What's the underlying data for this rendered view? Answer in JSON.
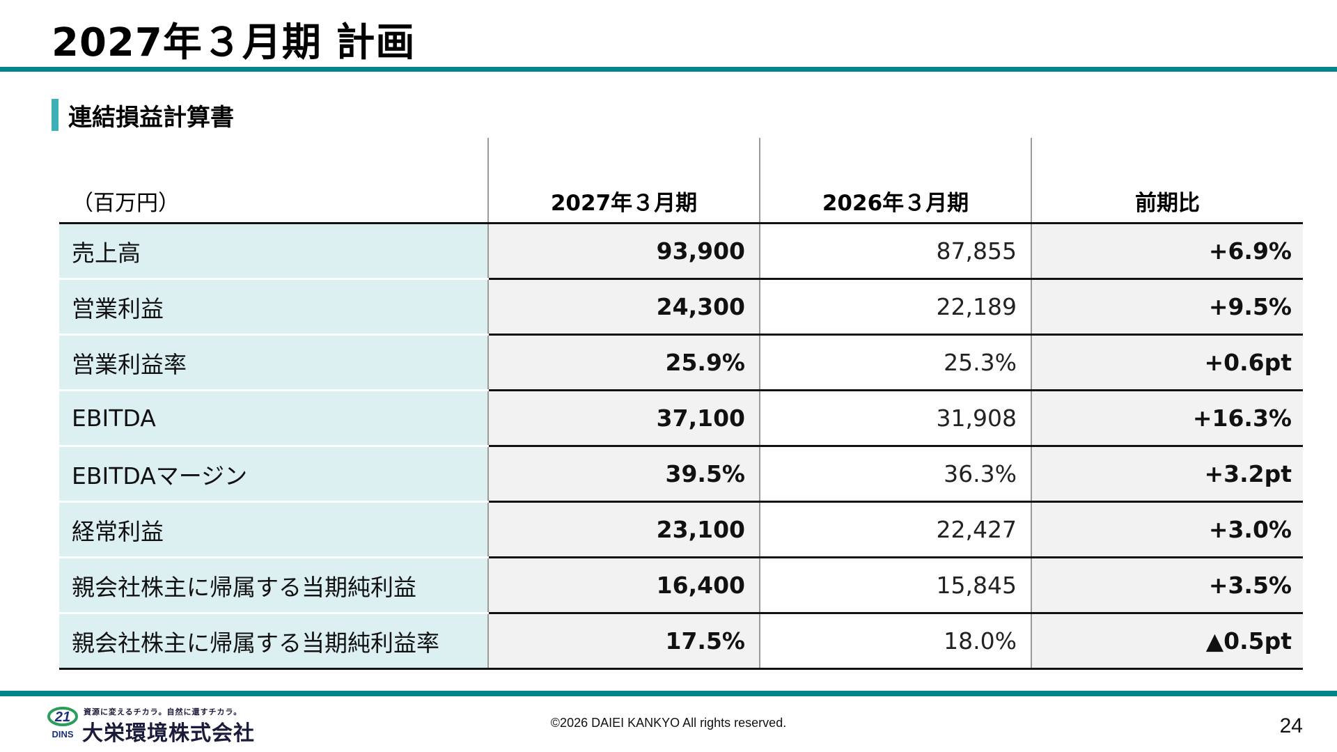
{
  "page": {
    "title": "2027年３月期 計画",
    "number": "24"
  },
  "section": {
    "title": "連結損益計算書"
  },
  "table": {
    "unit": "（百万円）",
    "columns": [
      "2027年３月期",
      "2026年３月期",
      "前期比"
    ],
    "rows": [
      {
        "label": "売上高",
        "plan": "93,900",
        "prev": "87,855",
        "diff": "+6.9%"
      },
      {
        "label": "営業利益",
        "plan": "24,300",
        "prev": "22,189",
        "diff": "+9.5%"
      },
      {
        "label": "営業利益率",
        "plan": "25.9%",
        "prev": "25.3%",
        "diff": "+0.6pt"
      },
      {
        "label": "EBITDA",
        "plan": "37,100",
        "prev": "31,908",
        "diff": "+16.3%"
      },
      {
        "label": "EBITDAマージン",
        "plan": "39.5%",
        "prev": "36.3%",
        "diff": "+3.2pt"
      },
      {
        "label": "経常利益",
        "plan": "23,100",
        "prev": "22,427",
        "diff": "+3.0%"
      },
      {
        "label": "親会社株主に帰属する当期純利益",
        "plan": "16,400",
        "prev": "15,845",
        "diff": "+3.5%"
      },
      {
        "label": "親会社株主に帰属する当期純利益率",
        "plan": "17.5%",
        "prev": "18.0%",
        "diff": "▲0.5pt"
      }
    ]
  },
  "footer": {
    "logo_mark": "21",
    "logo_sub": "DINS",
    "tagline": "資源に変えるチカラ。自然に還すチカラ。",
    "company": "大栄環境株式会社",
    "copyright": "©2026 DAIEI KANKYO All rights reserved."
  },
  "colors": {
    "accent": "#00868a",
    "section_bar": "#3fb1b6",
    "label_bg": "#dcf0f2",
    "cell_bg": "#f2f2f2"
  }
}
